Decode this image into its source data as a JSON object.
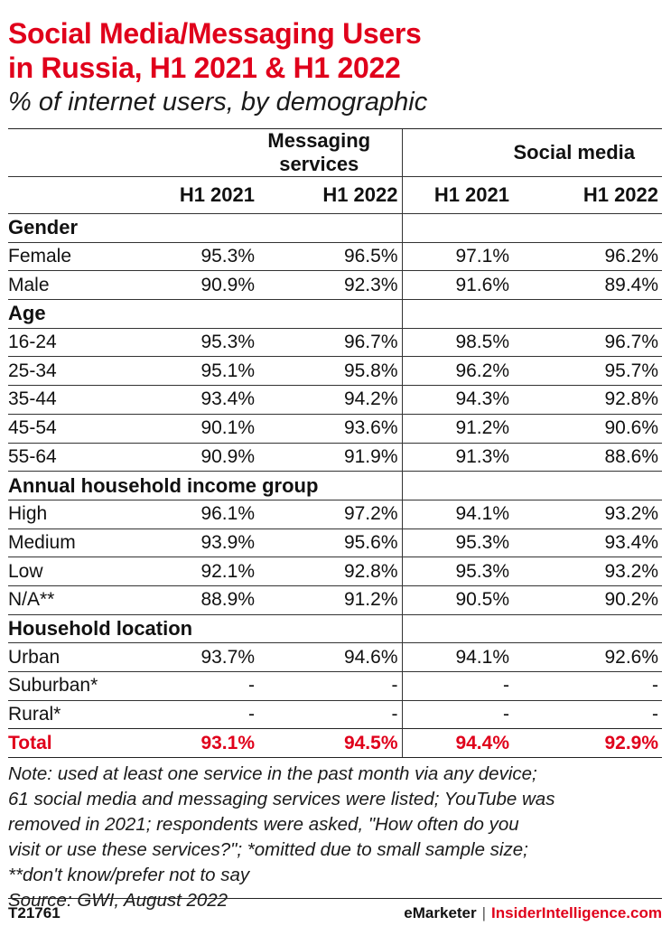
{
  "chart_data": {
    "type": "table",
    "title_lines": [
      "Social Media/Messaging Users",
      "in Russia, H1 2021 & H1 2022"
    ],
    "subtitle": "% of internet users, by demographic",
    "column_groups": [
      "Messaging services",
      "Social media"
    ],
    "periods": [
      "H1 2021",
      "H1 2022",
      "H1 2021",
      "H1 2022"
    ],
    "sections": [
      {
        "name": "Gender",
        "rows": [
          {
            "label": "Female",
            "values": [
              "95.3%",
              "96.5%",
              "97.1%",
              "96.2%"
            ]
          },
          {
            "label": "Male",
            "values": [
              "90.9%",
              "92.3%",
              "91.6%",
              "89.4%"
            ]
          }
        ]
      },
      {
        "name": "Age",
        "rows": [
          {
            "label": "16-24",
            "values": [
              "95.3%",
              "96.7%",
              "98.5%",
              "96.7%"
            ]
          },
          {
            "label": "25-34",
            "values": [
              "95.1%",
              "95.8%",
              "96.2%",
              "95.7%"
            ]
          },
          {
            "label": "35-44",
            "values": [
              "93.4%",
              "94.2%",
              "94.3%",
              "92.8%"
            ]
          },
          {
            "label": "45-54",
            "values": [
              "90.1%",
              "93.6%",
              "91.2%",
              "90.6%"
            ]
          },
          {
            "label": "55-64",
            "values": [
              "90.9%",
              "91.9%",
              "91.3%",
              "88.6%"
            ]
          }
        ]
      },
      {
        "name": "Annual household income group",
        "rows": [
          {
            "label": "High",
            "values": [
              "96.1%",
              "97.2%",
              "94.1%",
              "93.2%"
            ]
          },
          {
            "label": "Medium",
            "values": [
              "93.9%",
              "95.6%",
              "95.3%",
              "93.4%"
            ]
          },
          {
            "label": "Low",
            "values": [
              "92.1%",
              "92.8%",
              "95.3%",
              "93.2%"
            ]
          },
          {
            "label": "N/A**",
            "values": [
              "88.9%",
              "91.2%",
              "90.5%",
              "90.2%"
            ]
          }
        ]
      },
      {
        "name": "Household location",
        "rows": [
          {
            "label": "Urban",
            "values": [
              "93.7%",
              "94.6%",
              "94.1%",
              "92.6%"
            ]
          },
          {
            "label": "Suburban*",
            "values": [
              "-",
              "-",
              "-",
              "-"
            ]
          },
          {
            "label": "Rural*",
            "values": [
              "-",
              "-",
              "-",
              "-"
            ]
          }
        ]
      }
    ],
    "total": {
      "label": "Total",
      "values": [
        "93.1%",
        "94.5%",
        "94.4%",
        "92.9%"
      ]
    },
    "note_lines": [
      "Note: used at least one service in the past month via any device;",
      "61 social media and messaging services were listed; YouTube was",
      "removed in 2021; respondents were asked, \"How often do you",
      "visit or use these services?\"; *omitted due to small sample size;",
      "**don't know/prefer not to say",
      "Source: GWI, August 2022"
    ]
  },
  "footer": {
    "chart_id": "T21761",
    "brand_left": "eMarketer",
    "separator": "|",
    "brand_right": "InsiderIntelligence.com"
  },
  "colors": {
    "title": "#e0001b",
    "total": "#e0001b",
    "text": "#111111"
  }
}
